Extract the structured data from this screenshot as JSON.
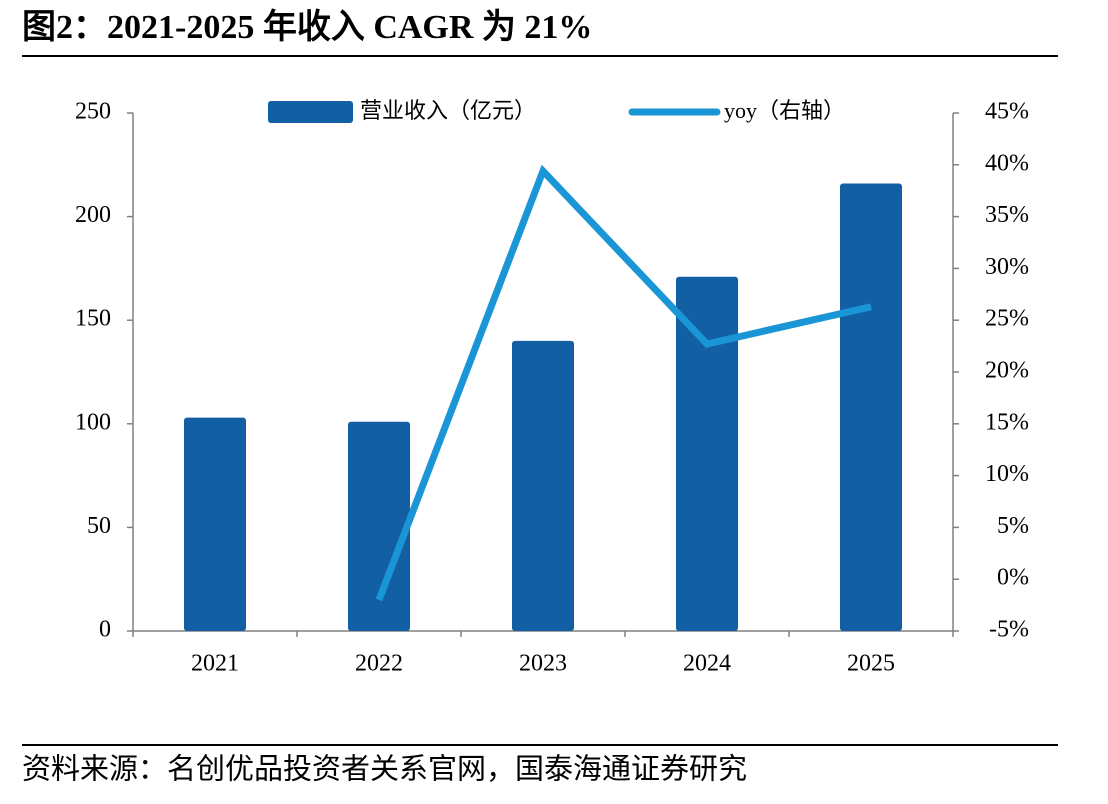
{
  "chart_data": {
    "type": "bar-line",
    "title": "图2：2021-2025 年收入 CAGR 为 21%",
    "source": "资料来源：名创优品投资者关系官网，国泰海通证券研究",
    "categories": [
      "2021",
      "2022",
      "2023",
      "2024",
      "2025"
    ],
    "series": [
      {
        "name": "营业收入（亿元）",
        "type": "bar",
        "color": "#125fa3",
        "values": [
          103,
          101,
          140,
          171,
          216
        ]
      },
      {
        "name": "yoy（右轴）",
        "type": "line",
        "axis": "y2",
        "color": "#1a95d6",
        "values": [
          null,
          -2,
          39.4,
          22.7,
          26.3
        ]
      }
    ],
    "ylim": [
      0,
      250
    ],
    "yticks": [
      0,
      50,
      100,
      150,
      200,
      250
    ],
    "y2lim": [
      -5,
      45
    ],
    "y2ticks": [
      {
        "value": -5,
        "label": "-5%"
      },
      {
        "value": 0,
        "label": "0%"
      },
      {
        "value": 5,
        "label": "5%"
      },
      {
        "value": 10,
        "label": "10%"
      },
      {
        "value": 15,
        "label": "15%"
      },
      {
        "value": 20,
        "label": "20%"
      },
      {
        "value": 25,
        "label": "25%"
      },
      {
        "value": 30,
        "label": "30%"
      },
      {
        "value": 35,
        "label": "35%"
      },
      {
        "value": 40,
        "label": "40%"
      },
      {
        "value": 45,
        "label": "45%"
      }
    ],
    "legend": "top"
  }
}
